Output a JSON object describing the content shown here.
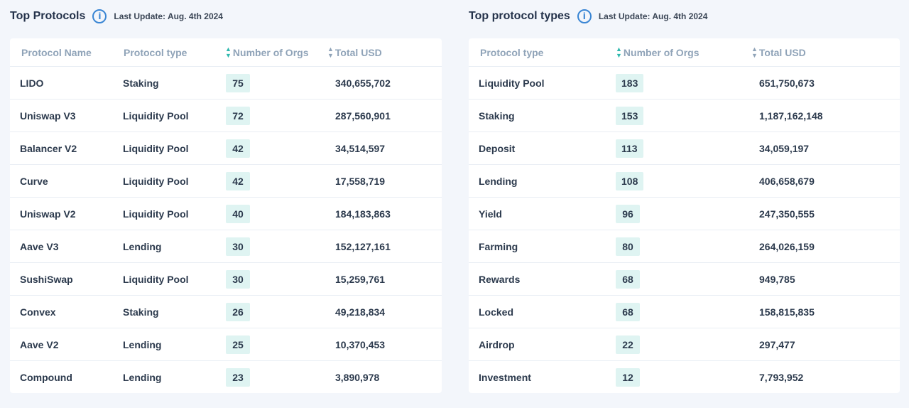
{
  "left": {
    "title": "Top Protocols",
    "info_icon": "info-icon",
    "last_update": "Last Update: Aug. 4th 2024",
    "headers": {
      "name": "Protocol Name",
      "type": "Protocol type",
      "orgs": "Number of Orgs",
      "usd": "Total USD"
    },
    "rows": [
      {
        "name": "LIDO",
        "type": "Staking",
        "orgs": "75",
        "usd": "340,655,702"
      },
      {
        "name": "Uniswap V3",
        "type": "Liquidity Pool",
        "orgs": "72",
        "usd": "287,560,901"
      },
      {
        "name": "Balancer V2",
        "type": "Liquidity Pool",
        "orgs": "42",
        "usd": "34,514,597"
      },
      {
        "name": "Curve",
        "type": "Liquidity Pool",
        "orgs": "42",
        "usd": "17,558,719"
      },
      {
        "name": "Uniswap V2",
        "type": "Liquidity Pool",
        "orgs": "40",
        "usd": "184,183,863"
      },
      {
        "name": "Aave V3",
        "type": "Lending",
        "orgs": "30",
        "usd": "152,127,161"
      },
      {
        "name": "SushiSwap",
        "type": "Liquidity Pool",
        "orgs": "30",
        "usd": "15,259,761"
      },
      {
        "name": "Convex",
        "type": "Staking",
        "orgs": "26",
        "usd": "49,218,834"
      },
      {
        "name": "Aave V2",
        "type": "Lending",
        "orgs": "25",
        "usd": "10,370,453"
      },
      {
        "name": "Compound",
        "type": "Lending",
        "orgs": "23",
        "usd": "3,890,978"
      }
    ]
  },
  "right": {
    "title": "Top protocol types",
    "info_icon": "info-icon",
    "last_update": "Last Update: Aug. 4th 2024",
    "headers": {
      "type": "Protocol type",
      "orgs": "Number of Orgs",
      "usd": "Total USD"
    },
    "rows": [
      {
        "type": "Liquidity Pool",
        "orgs": "183",
        "usd": "651,750,673"
      },
      {
        "type": "Staking",
        "orgs": "153",
        "usd": "1,187,162,148"
      },
      {
        "type": "Deposit",
        "orgs": "113",
        "usd": "34,059,197"
      },
      {
        "type": "Lending",
        "orgs": "108",
        "usd": "406,658,679"
      },
      {
        "type": "Yield",
        "orgs": "96",
        "usd": "247,350,555"
      },
      {
        "type": "Farming",
        "orgs": "80",
        "usd": "264,026,159"
      },
      {
        "type": "Rewards",
        "orgs": "68",
        "usd": "949,785"
      },
      {
        "type": "Locked",
        "orgs": "68",
        "usd": "158,815,835"
      },
      {
        "type": "Airdrop",
        "orgs": "22",
        "usd": "297,477"
      },
      {
        "type": "Investment",
        "orgs": "12",
        "usd": "7,793,952"
      }
    ]
  },
  "colors": {
    "background": "#f3f6fb",
    "badge": "#dff4f2",
    "sort_icon": "#2fb8ae",
    "info_icon": "#3a86d4",
    "header_text": "#8fa3b8"
  }
}
